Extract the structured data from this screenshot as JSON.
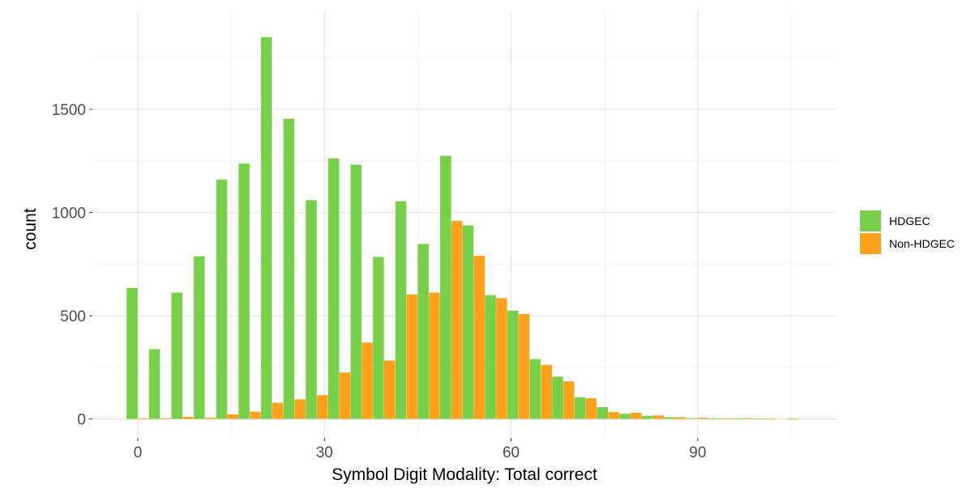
{
  "chart_data": {
    "type": "bar",
    "title": "",
    "xlabel": "Symbol Digit Modality: Total correct",
    "ylabel": "count",
    "xlim": [
      -7.3,
      112.3
    ],
    "ylim": [
      -92,
      1975
    ],
    "x_ticks": [
      0,
      30,
      60,
      90
    ],
    "x_tick_labels": [
      "0",
      "30",
      "60",
      "90"
    ],
    "y_ticks": [
      0,
      500,
      1000,
      1500
    ],
    "y_tick_labels": [
      "0",
      "500",
      "1000",
      "1500"
    ],
    "grid": true,
    "bin_width": 3.6,
    "bin_centers": [
      0.0,
      3.6,
      7.2,
      10.8,
      14.4,
      18.0,
      21.6,
      25.2,
      28.8,
      32.4,
      36.0,
      39.6,
      43.2,
      46.8,
      50.4,
      54.0,
      57.6,
      61.2,
      64.8,
      68.4,
      72.0,
      75.6,
      79.2,
      82.8,
      86.4,
      90.0,
      93.6,
      97.2,
      100.8,
      104.4
    ],
    "legend_position": "right",
    "series": [
      {
        "name": "HDGEC",
        "color": "#77d04a",
        "values": [
          635,
          338,
          612,
          788,
          1160,
          1237,
          1850,
          1455,
          1060,
          1263,
          1232,
          785,
          1055,
          848,
          1275,
          938,
          600,
          525,
          290,
          205,
          105,
          57,
          25,
          15,
          8,
          4,
          2,
          1,
          2,
          0
        ]
      },
      {
        "name": "Non-HDGEC",
        "color": "#ffa11a",
        "values": [
          2,
          4,
          10,
          6,
          22,
          35,
          78,
          95,
          115,
          225,
          370,
          283,
          603,
          612,
          960,
          790,
          585,
          508,
          262,
          182,
          100,
          33,
          30,
          17,
          8,
          6,
          2,
          4,
          1,
          1
        ]
      }
    ]
  }
}
